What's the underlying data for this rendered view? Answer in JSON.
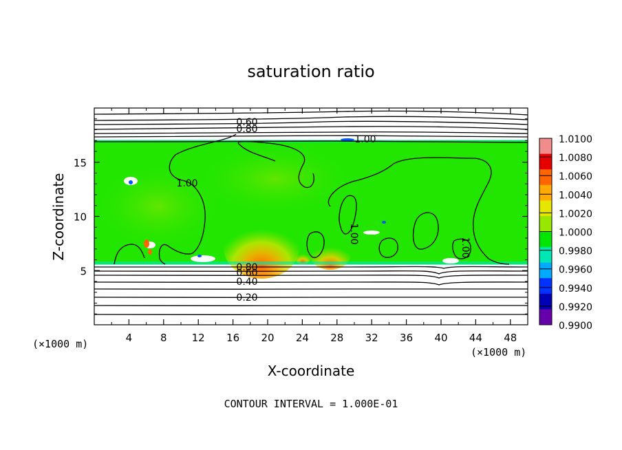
{
  "chart_data": {
    "type": "heatmap",
    "title": "saturation ratio",
    "xlabel": "X-coordinate",
    "ylabel": "Z-coordinate",
    "x_unit_left": "(×1000 m)",
    "x_unit_right": "(×1000 m)",
    "footnote": "CONTOUR INTERVAL = 1.000E-01",
    "xlim": [
      0,
      50
    ],
    "ylim": [
      0,
      20
    ],
    "x_ticks": [
      4,
      8,
      12,
      16,
      20,
      24,
      28,
      32,
      36,
      40,
      44,
      48
    ],
    "y_ticks": [
      5,
      10,
      15
    ],
    "grid": false,
    "cloud_layer_z": [
      5.7,
      17.0
    ],
    "colorbar": {
      "levels": [
        "1.0100",
        "1.0080",
        "1.0060",
        "1.0040",
        "1.0020",
        "1.0000",
        "0.9980",
        "0.9960",
        "0.9940",
        "0.9920",
        "0.9900"
      ],
      "colors": [
        "#f08c8c",
        "#e60000",
        "#ff6600",
        "#ffaa00",
        "#e6e600",
        "#99e600",
        "#00e600",
        "#00e6b4",
        "#00aaff",
        "#0033ff",
        "#0000b4",
        "#6600aa"
      ]
    },
    "contour_labels": [
      {
        "text": "0.60",
        "x": 17.6,
        "z": 18.7
      },
      {
        "text": "0.80",
        "x": 17.6,
        "z": 18.0
      },
      {
        "text": "1.00",
        "x": 30.0,
        "z": 17.2
      },
      {
        "text": "1.00",
        "x": 10.5,
        "z": 13.1
      },
      {
        "text": "1.00",
        "x": 30.0,
        "z": 8.5
      },
      {
        "text": "1.00",
        "x": 42.5,
        "z": 7.2
      },
      {
        "text": "0.80",
        "x": 17.6,
        "z": 5.5
      },
      {
        "text": "0.60",
        "x": 17.6,
        "z": 5.0
      },
      {
        "text": "0.40",
        "x": 17.6,
        "z": 4.2
      },
      {
        "text": "0.20",
        "x": 17.6,
        "z": 2.8
      }
    ]
  }
}
